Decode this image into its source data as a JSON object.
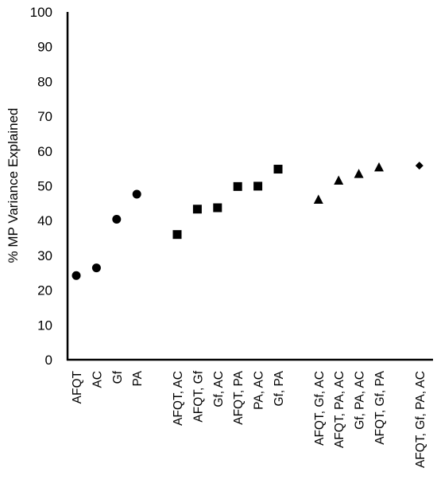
{
  "chart_data": {
    "type": "scatter",
    "title": "",
    "xlabel": "",
    "ylabel": "% MP Variance Explained",
    "ylim": [
      0,
      100
    ],
    "yticks": [
      0,
      10,
      20,
      30,
      40,
      50,
      60,
      70,
      80,
      90,
      100
    ],
    "grid": false,
    "legend": "none",
    "marker_color": "#000000",
    "groups": [
      {
        "marker": "circle",
        "points": [
          {
            "label": "AFQT",
            "value": 24.2
          },
          {
            "label": "AC",
            "value": 26.4
          },
          {
            "label": "Gf",
            "value": 40.4
          },
          {
            "label": "PA",
            "value": 47.6
          }
        ]
      },
      {
        "marker": "square",
        "points": [
          {
            "label": "AFQT, AC",
            "value": 36.0
          },
          {
            "label": "AFQT, Gf",
            "value": 43.3
          },
          {
            "label": "Gf, AC",
            "value": 43.7
          },
          {
            "label": "AFQT, PA",
            "value": 49.8
          },
          {
            "label": "PA, AC",
            "value": 49.9
          },
          {
            "label": "Gf, PA",
            "value": 54.8
          }
        ]
      },
      {
        "marker": "triangle",
        "points": [
          {
            "label": "AFQT, Gf, AC",
            "value": 46.0
          },
          {
            "label": "AFQT, PA, AC",
            "value": 51.5
          },
          {
            "label": "Gf, PA, AC",
            "value": 53.4
          },
          {
            "label": "AFQT, Gf, PA",
            "value": 55.3
          }
        ]
      },
      {
        "marker": "diamond",
        "points": [
          {
            "label": "AFQT, Gf, PA, AC",
            "value": 55.8
          }
        ]
      }
    ]
  }
}
